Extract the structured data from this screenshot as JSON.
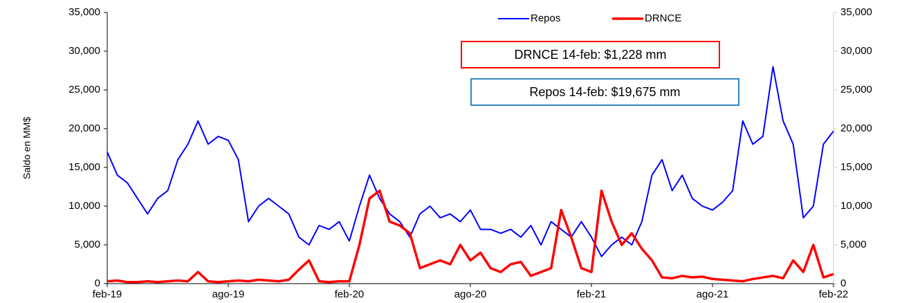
{
  "chart_data": {
    "type": "line",
    "y_label": "Saldo en MM$",
    "annotations": [
      {
        "text": "DRNCE 14-feb: $1,228 mm",
        "color": "#ff0000"
      },
      {
        "text": "Repos 14-feb: $19,675 mm",
        "color": "#2e86c1"
      }
    ],
    "x": [
      0,
      0.5,
      1,
      1.5,
      2,
      2.5,
      3,
      3.5,
      4,
      4.5,
      5,
      5.5,
      6,
      6.5,
      7,
      7.5,
      8,
      8.5,
      9,
      9.5,
      10,
      10.5,
      11,
      11.5,
      12,
      12.5,
      13,
      13.5,
      14,
      14.5,
      15,
      15.5,
      16,
      16.5,
      17,
      17.5,
      18,
      18.5,
      19,
      19.5,
      20,
      20.5,
      21,
      21.5,
      22,
      22.5,
      23,
      23.5,
      24,
      24.5,
      25,
      25.5,
      26,
      26.5,
      27,
      27.5,
      28,
      28.5,
      29,
      29.5,
      30,
      30.5,
      31,
      31.5,
      32,
      32.5,
      33,
      33.5,
      34,
      34.5,
      35,
      35.5,
      36
    ],
    "series": [
      {
        "name": "Repos",
        "color": "#0000ff",
        "width": 2,
        "values": [
          17000,
          14000,
          13000,
          11000,
          9000,
          11000,
          12000,
          16000,
          18000,
          21000,
          18000,
          19000,
          18500,
          16000,
          8000,
          10000,
          11000,
          10000,
          9000,
          6000,
          5000,
          7500,
          7000,
          8000,
          5500,
          10000,
          14000,
          11000,
          9000,
          8000,
          6000,
          9000,
          10000,
          8500,
          9000,
          8000,
          9500,
          7000,
          7000,
          6500,
          7000,
          6000,
          7500,
          5000,
          8000,
          7000,
          6000,
          8000,
          6000,
          3500,
          5000,
          6000,
          5000,
          8000,
          14000,
          16000,
          12000,
          14000,
          11000,
          10000,
          9500,
          10500,
          12000,
          21000,
          18000,
          19000,
          28000,
          21000,
          18000,
          8500,
          10000,
          18000,
          19675
        ]
      },
      {
        "name": "DRNCE",
        "color": "#ff0000",
        "width": 3.5,
        "values": [
          300,
          400,
          200,
          200,
          300,
          200,
          300,
          400,
          300,
          1500,
          300,
          200,
          300,
          400,
          300,
          500,
          400,
          300,
          500,
          1800,
          3000,
          300,
          200,
          300,
          300,
          5000,
          11000,
          12000,
          8000,
          7500,
          6500,
          2000,
          2500,
          3000,
          2500,
          5000,
          3000,
          4000,
          2000,
          1500,
          2500,
          2800,
          1000,
          1500,
          2000,
          9500,
          6000,
          2000,
          1500,
          12000,
          8000,
          5000,
          6500,
          4500,
          3000,
          800,
          700,
          1000,
          800,
          900,
          600,
          500,
          400,
          300,
          600,
          800,
          1000,
          700,
          3000,
          1500,
          5000,
          800,
          1228
        ]
      }
    ],
    "xlim": [
      0,
      36
    ],
    "xticks": [
      {
        "value": 0,
        "label": "feb-19"
      },
      {
        "value": 6,
        "label": "ago-19"
      },
      {
        "value": 12,
        "label": "feb-20"
      },
      {
        "value": 18,
        "label": "ago-20"
      },
      {
        "value": 24,
        "label": "feb-21"
      },
      {
        "value": 30,
        "label": "ago-21"
      },
      {
        "value": 36,
        "label": "feb-22"
      }
    ],
    "ylim": [
      0,
      35000
    ],
    "yticks": [
      0,
      {
        "value": 5000,
        "label": "5,000"
      },
      {
        "value": 10000,
        "label": "10,000"
      },
      {
        "value": 15000,
        "label": "15,000"
      },
      {
        "value": 20000,
        "label": "20,000"
      },
      {
        "value": 25000,
        "label": "25,000"
      },
      {
        "value": 30000,
        "label": "30,000"
      },
      {
        "value": 35000,
        "label": "35,000"
      }
    ],
    "y2lim": [
      0,
      35000
    ],
    "y2ticks": [
      0,
      {
        "value": 5000,
        "label": "5,000"
      },
      {
        "value": 10000,
        "label": "10,000"
      },
      {
        "value": 15000,
        "label": "15,000"
      },
      {
        "value": 20000,
        "label": "20,000"
      },
      {
        "value": 25000,
        "label": "25,000"
      },
      {
        "value": 30000,
        "label": "30,000"
      },
      {
        "value": 35000,
        "label": "35,000"
      }
    ],
    "legend": "top"
  }
}
